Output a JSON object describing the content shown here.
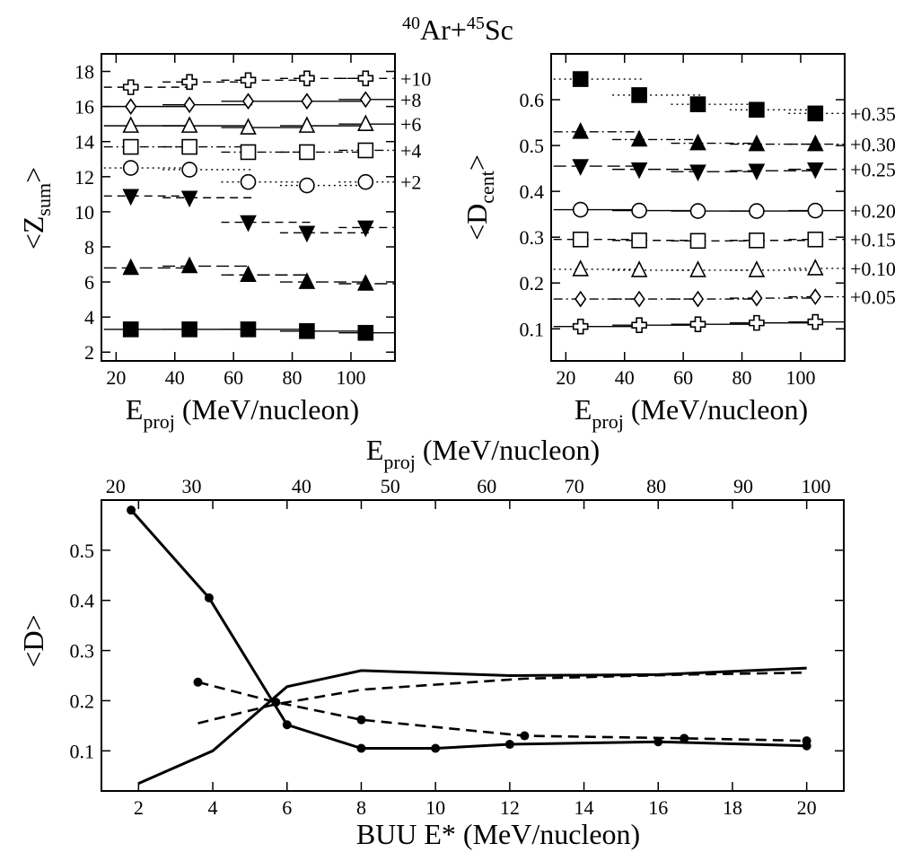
{
  "figure": {
    "title_base": "Ar+",
    "title_sup1": "40",
    "title_sup2": "45",
    "title_end": "Sc"
  },
  "chart_data": [
    {
      "id": "zsum",
      "type": "scatter",
      "ylabel_main": "<Z",
      "ylabel_sub": "sum",
      "ylabel_end": ">",
      "xlabel_main": "E",
      "xlabel_sub": "proj",
      "xlabel_end": " (MeV/nucleon)",
      "xlim": [
        15,
        115
      ],
      "ylim": [
        1.5,
        19
      ],
      "x_ticks": [
        20,
        40,
        60,
        80,
        100
      ],
      "y_ticks": [
        2,
        4,
        6,
        8,
        10,
        12,
        14,
        16,
        18
      ],
      "x_labels": [
        "20",
        "40",
        "60",
        "80",
        "100"
      ],
      "y_labels": [
        "2",
        "4",
        "6",
        "8",
        "10",
        "12",
        "14",
        "16",
        "18"
      ],
      "series": [
        {
          "marker": "cross-open",
          "x": [
            25,
            45,
            65,
            85,
            105
          ],
          "y": [
            17.1,
            17.4,
            17.5,
            17.6,
            17.6
          ],
          "line": "dash",
          "offset": "+10"
        },
        {
          "marker": "diamond-open",
          "x": [
            25,
            45,
            65,
            85,
            105
          ],
          "y": [
            16.0,
            16.1,
            16.3,
            16.3,
            16.4
          ],
          "line": "solid",
          "offset": "+8"
        },
        {
          "marker": "triangle-up-open",
          "x": [
            25,
            45,
            65,
            85,
            105
          ],
          "y": [
            14.9,
            14.9,
            14.8,
            14.9,
            15.0
          ],
          "line": "solid",
          "offset": "+6"
        },
        {
          "marker": "square-open",
          "x": [
            25,
            45,
            65,
            85,
            105
          ],
          "y": [
            13.7,
            13.7,
            13.4,
            13.4,
            13.5
          ],
          "line": "dashdot",
          "offset": "+4"
        },
        {
          "marker": "circle-open",
          "x": [
            25,
            45,
            65,
            85,
            105
          ],
          "y": [
            12.5,
            12.4,
            11.7,
            11.5,
            11.7
          ],
          "line": "dot",
          "offset": "+2"
        },
        {
          "marker": "triangle-down-filled",
          "x": [
            25,
            45,
            65,
            85,
            105
          ],
          "y": [
            10.9,
            10.8,
            9.4,
            8.8,
            9.1
          ],
          "line": "dash",
          "offset": ""
        },
        {
          "marker": "triangle-up-filled",
          "x": [
            25,
            45,
            65,
            85,
            105
          ],
          "y": [
            6.8,
            6.9,
            6.4,
            6.0,
            5.9
          ],
          "line": "longdash",
          "offset": ""
        },
        {
          "marker": "square-filled",
          "x": [
            25,
            45,
            65,
            85,
            105
          ],
          "y": [
            3.3,
            3.3,
            3.3,
            3.2,
            3.1
          ],
          "line": "solid",
          "offset": ""
        }
      ]
    },
    {
      "id": "dcent",
      "type": "scatter",
      "ylabel_main": "<D",
      "ylabel_sub": "cent",
      "ylabel_end": ">",
      "xlabel_main": "E",
      "xlabel_sub": "proj",
      "xlabel_end": " (MeV/nucleon)",
      "xlim": [
        15,
        115
      ],
      "ylim": [
        0.03,
        0.7
      ],
      "x_ticks": [
        20,
        40,
        60,
        80,
        100
      ],
      "y_ticks": [
        0.1,
        0.2,
        0.3,
        0.4,
        0.5,
        0.6
      ],
      "x_labels": [
        "20",
        "40",
        "60",
        "80",
        "100"
      ],
      "y_labels": [
        "0.1",
        "0.2",
        "0.3",
        "0.4",
        "0.5",
        "0.6"
      ],
      "series": [
        {
          "marker": "square-filled",
          "x": [
            25,
            45,
            65,
            85,
            105
          ],
          "y": [
            0.645,
            0.61,
            0.59,
            0.578,
            0.57
          ],
          "line": "dot",
          "offset": "+0.35"
        },
        {
          "marker": "triangle-up-filled",
          "x": [
            25,
            45,
            65,
            85,
            105
          ],
          "y": [
            0.53,
            0.513,
            0.505,
            0.503,
            0.503
          ],
          "line": "dashdot",
          "offset": "+0.30"
        },
        {
          "marker": "triangle-down-filled",
          "x": [
            25,
            45,
            65,
            85,
            105
          ],
          "y": [
            0.455,
            0.448,
            0.443,
            0.445,
            0.448
          ],
          "line": "longdash",
          "offset": "+0.25"
        },
        {
          "marker": "circle-open",
          "x": [
            25,
            45,
            65,
            85,
            105
          ],
          "y": [
            0.36,
            0.358,
            0.357,
            0.357,
            0.358
          ],
          "line": "solid",
          "offset": "+0.20"
        },
        {
          "marker": "square-open",
          "x": [
            25,
            45,
            65,
            85,
            105
          ],
          "y": [
            0.295,
            0.293,
            0.292,
            0.293,
            0.295
          ],
          "line": "dash",
          "offset": "+0.15"
        },
        {
          "marker": "triangle-up-open",
          "x": [
            25,
            45,
            65,
            85,
            105
          ],
          "y": [
            0.23,
            0.228,
            0.228,
            0.228,
            0.232
          ],
          "line": "dot",
          "offset": "+0.10"
        },
        {
          "marker": "diamond-open",
          "x": [
            25,
            45,
            65,
            85,
            105
          ],
          "y": [
            0.165,
            0.165,
            0.165,
            0.167,
            0.17
          ],
          "line": "dashdot",
          "offset": "+0.05"
        },
        {
          "marker": "cross-open",
          "x": [
            25,
            45,
            65,
            85,
            105
          ],
          "y": [
            0.105,
            0.108,
            0.11,
            0.113,
            0.115
          ],
          "line": "solid",
          "offset": ""
        }
      ]
    },
    {
      "id": "buu",
      "type": "line",
      "ylabel": "<D>",
      "xlabel": "BUU E* (MeV/nucleon)",
      "xlabel_top_main": "E",
      "xlabel_top_sub": "proj",
      "xlabel_top_end": " (MeV/nucleon)",
      "xlim": [
        1,
        21
      ],
      "ylim": [
        0.02,
        0.6
      ],
      "x_ticks": [
        2,
        4,
        6,
        8,
        10,
        12,
        14,
        16,
        18,
        20
      ],
      "y_ticks": [
        0.1,
        0.2,
        0.3,
        0.4,
        0.5
      ],
      "x_labels": [
        "2",
        "4",
        "6",
        "8",
        "10",
        "12",
        "14",
        "16",
        "18",
        "20"
      ],
      "y_labels": [
        "0.1",
        "0.2",
        "0.3",
        "0.4",
        "0.5"
      ],
      "top_ticks": [
        20,
        30,
        40,
        50,
        60,
        70,
        80,
        90,
        100
      ],
      "top_labels": [
        "20",
        "30",
        "40",
        "50",
        "60",
        "70",
        "80",
        "90",
        "100"
      ],
      "top_positions_in_bottom_units": [
        1.38,
        3.43,
        6.39,
        8.78,
        11.38,
        13.74,
        15.95,
        18.29,
        20.25
      ],
      "series": [
        {
          "style": "solid",
          "markers": true,
          "x": [
            1.8,
            3.9,
            6.0,
            8.0,
            10.0,
            12.0,
            16.0,
            20.0
          ],
          "y": [
            0.58,
            0.405,
            0.152,
            0.105,
            0.105,
            0.113,
            0.118,
            0.11
          ]
        },
        {
          "style": "dash",
          "markers": true,
          "x": [
            3.6,
            5.7,
            8.0,
            12.4,
            16.7,
            20.0
          ],
          "y": [
            0.237,
            0.197,
            0.162,
            0.13,
            0.125,
            0.12
          ]
        },
        {
          "style": "solid",
          "markers": false,
          "x": [
            2.0,
            4.0,
            6.0,
            8.0,
            12.0,
            16.0,
            20.0
          ],
          "y": [
            0.035,
            0.1,
            0.228,
            0.26,
            0.25,
            0.252,
            0.265
          ]
        },
        {
          "style": "dash",
          "markers": false,
          "x": [
            3.6,
            5.7,
            8.0,
            12.4,
            16.7,
            20.0
          ],
          "y": [
            0.155,
            0.193,
            0.222,
            0.244,
            0.252,
            0.256
          ]
        }
      ]
    }
  ]
}
